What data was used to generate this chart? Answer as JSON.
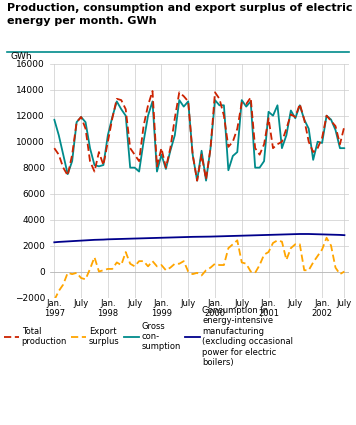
{
  "title": "Production, consumption and export surplus of electric\nenergy per month. GWh",
  "ylabel": "GWh",
  "ylim": [
    -2000,
    16000
  ],
  "yticks": [
    -2000,
    0,
    2000,
    4000,
    6000,
    8000,
    10000,
    12000,
    14000,
    16000
  ],
  "total_production": [
    9500,
    9000,
    8000,
    7400,
    9000,
    11500,
    11900,
    11000,
    8500,
    7700,
    9200,
    8200,
    10000,
    11800,
    13300,
    13200,
    12500,
    9500,
    9000,
    8500,
    11200,
    12800,
    13900,
    8100,
    9500,
    8000,
    9500,
    11800,
    13800,
    13500,
    13100,
    9000,
    7000,
    9000,
    7100,
    9500,
    13800,
    13300,
    12000,
    9600,
    10000,
    11000,
    13000,
    12900,
    13400,
    9500,
    9000,
    9800,
    11800,
    9500,
    9800,
    10000,
    11000,
    12100,
    11900,
    12900,
    11700,
    10000,
    9200,
    9500,
    10300,
    12000,
    11600,
    11200,
    9800,
    11200
  ],
  "gross_consumption": [
    11700,
    10500,
    9000,
    7500,
    8500,
    11500,
    11900,
    11500,
    9500,
    8200,
    8100,
    8200,
    10500,
    11900,
    13100,
    12500,
    12000,
    8000,
    8000,
    7700,
    10000,
    12000,
    13100,
    7700,
    9000,
    7900,
    9300,
    10500,
    13200,
    12700,
    13100,
    9000,
    7000,
    9300,
    7000,
    9500,
    13200,
    12800,
    12800,
    7800,
    8900,
    9200,
    13200,
    12700,
    13100,
    8000,
    8000,
    8500,
    12300,
    12000,
    12800,
    9500,
    10500,
    12400,
    11800,
    12800,
    11700,
    11000,
    8600,
    10000,
    9900,
    12000,
    11700,
    10900,
    9500,
    9500
  ],
  "export_surplus": [
    -2200,
    -1500,
    -1000,
    -100,
    -200,
    -100,
    -500,
    -600,
    200,
    1100,
    0,
    100,
    200,
    200,
    700,
    500,
    1500,
    600,
    400,
    800,
    800,
    400,
    800,
    400,
    500,
    100,
    300,
    600,
    600,
    800,
    0,
    -200,
    -100,
    -300,
    100,
    300,
    600,
    500,
    500,
    1800,
    2100,
    2400,
    700,
    600,
    0,
    -100,
    500,
    1300,
    1500,
    2200,
    2400,
    2300,
    900,
    1800,
    2100,
    2100,
    100,
    100,
    700,
    1200,
    1700,
    2600,
    2000,
    300,
    -200,
    0
  ],
  "energy_intensive": [
    2250,
    2280,
    2300,
    2320,
    2340,
    2360,
    2380,
    2400,
    2420,
    2440,
    2450,
    2460,
    2480,
    2490,
    2500,
    2510,
    2520,
    2530,
    2540,
    2550,
    2560,
    2570,
    2580,
    2590,
    2600,
    2610,
    2620,
    2630,
    2640,
    2650,
    2660,
    2670,
    2675,
    2680,
    2685,
    2690,
    2700,
    2710,
    2720,
    2730,
    2740,
    2750,
    2760,
    2770,
    2780,
    2790,
    2800,
    2810,
    2820,
    2830,
    2840,
    2850,
    2860,
    2870,
    2880,
    2890,
    2890,
    2890,
    2880,
    2870,
    2860,
    2850,
    2840,
    2830,
    2820,
    2800
  ],
  "colors": {
    "total_production": "#cc2200",
    "gross_consumption": "#008b8b",
    "export_surplus": "#ffa500",
    "energy_intensive": "#00008b"
  },
  "xtick_labels": [
    "Jan.\n1997",
    "July",
    "Jan.\n1998",
    "July",
    "Jan.\n1999",
    "July",
    "Jan.\n2000",
    "July",
    "Jan.\n2001",
    "July",
    "Jan.\n2002",
    "July"
  ],
  "xtick_positions": [
    0,
    6,
    12,
    18,
    24,
    30,
    36,
    42,
    48,
    54,
    60,
    65
  ]
}
